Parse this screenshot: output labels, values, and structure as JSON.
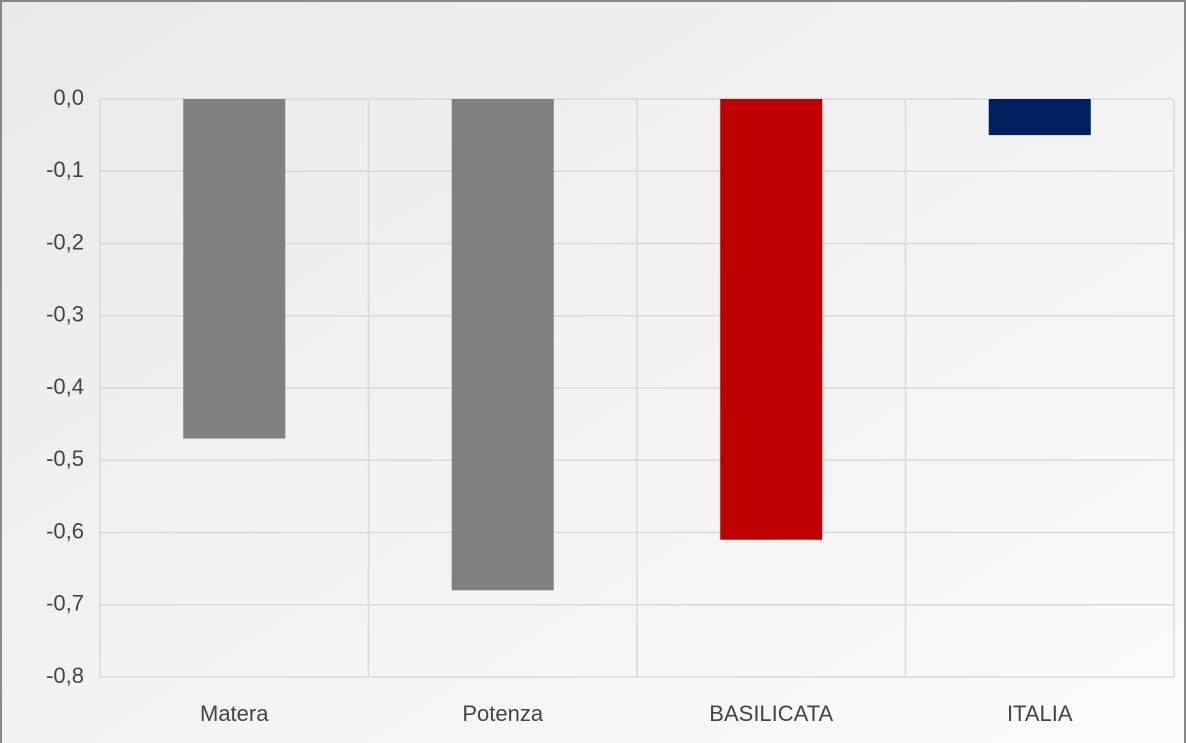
{
  "chart_data": {
    "type": "bar",
    "categories": [
      "Matera",
      "Potenza",
      "BASILICATA",
      "ITALIA"
    ],
    "values": [
      -0.47,
      -0.68,
      -0.61,
      -0.05
    ],
    "colors": [
      "#808080",
      "#808080",
      "#c00000",
      "#002060"
    ],
    "ylim": [
      -0.8,
      0
    ],
    "yticks": [
      {
        "value": 0,
        "label": "0,0"
      },
      {
        "value": -0.1,
        "label": "-0,1"
      },
      {
        "value": -0.2,
        "label": "-0,2"
      },
      {
        "value": -0.3,
        "label": "-0,3"
      },
      {
        "value": -0.4,
        "label": "-0,4"
      },
      {
        "value": -0.5,
        "label": "-0,5"
      },
      {
        "value": -0.6,
        "label": "-0,6"
      },
      {
        "value": -0.7,
        "label": "-0,7"
      },
      {
        "value": -0.8,
        "label": "-0,8"
      }
    ],
    "grid": true
  }
}
